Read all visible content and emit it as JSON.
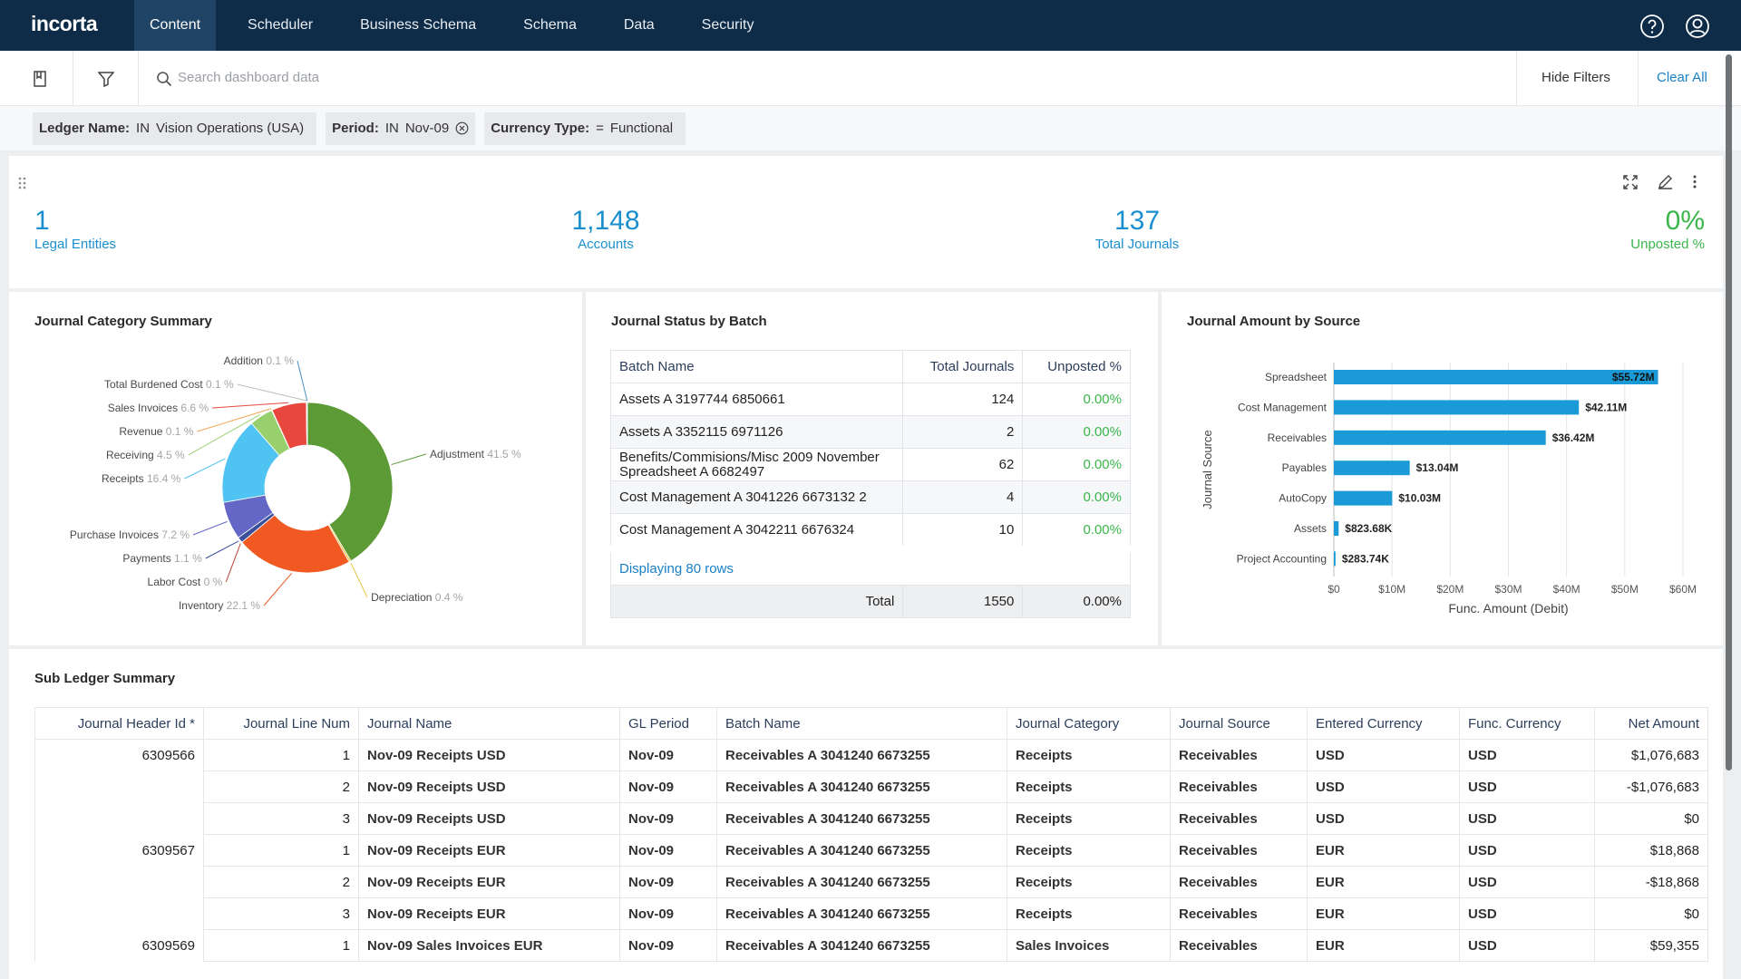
{
  "nav": {
    "logo": "incorta",
    "tabs": [
      "Content",
      "Scheduler",
      "Business Schema",
      "Schema",
      "Data",
      "Security"
    ]
  },
  "toolbar": {
    "search_placeholder": "Search dashboard data",
    "hide_filters": "Hide Filters",
    "clear_all": "Clear All"
  },
  "filters": [
    {
      "name": "Ledger Name:",
      "operator": "IN",
      "value": "Vision Operations (USA)"
    },
    {
      "name": "Period:",
      "operator": "IN",
      "value": "Nov-09"
    },
    {
      "name": "Currency Type:",
      "operator": "=",
      "value": "Functional"
    }
  ],
  "kpis": [
    {
      "value": "1",
      "label": "Legal Entities"
    },
    {
      "value": "1,148",
      "label": "Accounts"
    },
    {
      "value": "137",
      "label": "Total Journals"
    },
    {
      "value": "0%",
      "label": "Unposted %"
    }
  ],
  "chart_data": [
    {
      "type": "donut",
      "title": "Journal Category Summary",
      "categories": [
        "Adjustment",
        "Depreciation",
        "Inventory",
        "Labor Cost",
        "Payments",
        "Purchase Invoices",
        "Receipts",
        "Receiving",
        "Revenue",
        "Sales Invoices",
        "Total Burdened Cost",
        "Addition"
      ],
      "values": [
        41.5,
        0.4,
        22.1,
        0,
        1.1,
        7.2,
        16.4,
        4.5,
        0.1,
        6.6,
        0.1,
        0.1
      ],
      "value_labels": [
        "41.5 %",
        "0.4 %",
        "22.1 %",
        "0 %",
        "1.1 %",
        "7.2 %",
        "16.4 %",
        "4.5 %",
        "0.1 %",
        "6.6 %",
        "0.1 %",
        "0.1 %"
      ],
      "colors": [
        "#5b9a35",
        "#e7c441",
        "#f05a22",
        "#b8402f",
        "#3b4f9c",
        "#6467c6",
        "#4fc3f2",
        "#97d06c",
        "#f1a65a",
        "#e8473d",
        "#bdbdbd",
        "#4a90c2"
      ]
    },
    {
      "type": "bar",
      "title": "Journal Amount by Source",
      "categories": [
        "Spreadsheet",
        "Cost Management",
        "Receivables",
        "Payables",
        "AutoCopy",
        "Assets",
        "Project Accounting"
      ],
      "values": [
        55720000,
        42110000,
        36420000,
        13040000,
        10030000,
        823680,
        283740
      ],
      "value_labels": [
        "$55.72M",
        "$42.11M",
        "$36.42M",
        "$13.04M",
        "$10.03M",
        "$823.68K",
        "$283.74K"
      ],
      "color": "#1a9bd7",
      "xlim": [
        0,
        60000000
      ],
      "xticks": [
        {
          "value": 0,
          "label": "$0"
        },
        {
          "value": 10000000,
          "label": "$10M"
        },
        {
          "value": 20000000,
          "label": "$20M"
        },
        {
          "value": 30000000,
          "label": "$30M"
        },
        {
          "value": 40000000,
          "label": "$40M"
        },
        {
          "value": 50000000,
          "label": "$50M"
        },
        {
          "value": 60000000,
          "label": "$60M"
        }
      ],
      "xlabel": "Func. Amount (Debit)",
      "ylabel": "Journal Source",
      "grid": true
    }
  ],
  "batch_table": {
    "title": "Journal Status by Batch",
    "headers": [
      "Batch Name",
      "Total Journals",
      "Unposted %"
    ],
    "rows": [
      [
        "Assets A 3197744 6850661",
        124,
        "0.00%"
      ],
      [
        "Assets A 3352115 6971126",
        2,
        "0.00%"
      ],
      [
        "Benefits/Commisions/Misc 2009 November Spreadsheet A 6682497",
        62,
        "0.00%"
      ],
      [
        "Cost Management A 3041226 6673132 2",
        4,
        "0.00%"
      ],
      [
        "Cost Management A 3042211 6676324",
        10,
        "0.00%"
      ]
    ],
    "footer": {
      "displaying": "Displaying 80 rows",
      "total_label": "Total",
      "total_journals": 1550,
      "unposted": "0.00%"
    }
  },
  "sub_ledger": {
    "title": "Sub Ledger Summary",
    "headers": [
      "Journal Header Id *",
      "Journal Line Num",
      "Journal Name",
      "GL Period",
      "Batch Name",
      "Journal Category",
      "Journal Source",
      "Entered Currency",
      "Func. Currency",
      "Net Amount"
    ],
    "rows": [
      [
        6309566,
        1,
        "Nov-09 Receipts USD",
        "Nov-09",
        "Receivables A 3041240 6673255",
        "Receipts",
        "Receivables",
        "USD",
        "USD",
        "$1,076,683"
      ],
      [
        null,
        2,
        "Nov-09 Receipts USD",
        "Nov-09",
        "Receivables A 3041240 6673255",
        "Receipts",
        "Receivables",
        "USD",
        "USD",
        "-$1,076,683"
      ],
      [
        null,
        3,
        "Nov-09 Receipts USD",
        "Nov-09",
        "Receivables A 3041240 6673255",
        "Receipts",
        "Receivables",
        "USD",
        "USD",
        "$0"
      ],
      [
        6309567,
        1,
        "Nov-09 Receipts EUR",
        "Nov-09",
        "Receivables A 3041240 6673255",
        "Receipts",
        "Receivables",
        "EUR",
        "USD",
        "$18,868"
      ],
      [
        null,
        2,
        "Nov-09 Receipts EUR",
        "Nov-09",
        "Receivables A 3041240 6673255",
        "Receipts",
        "Receivables",
        "EUR",
        "USD",
        "-$18,868"
      ],
      [
        null,
        3,
        "Nov-09 Receipts EUR",
        "Nov-09",
        "Receivables A 3041240 6673255",
        "Receipts",
        "Receivables",
        "EUR",
        "USD",
        "$0"
      ],
      [
        6309569,
        1,
        "Nov-09 Sales Invoices EUR",
        "Nov-09",
        "Receivables A 3041240 6673255",
        "Sales Invoices",
        "Receivables",
        "EUR",
        "USD",
        "$59,355"
      ]
    ]
  }
}
